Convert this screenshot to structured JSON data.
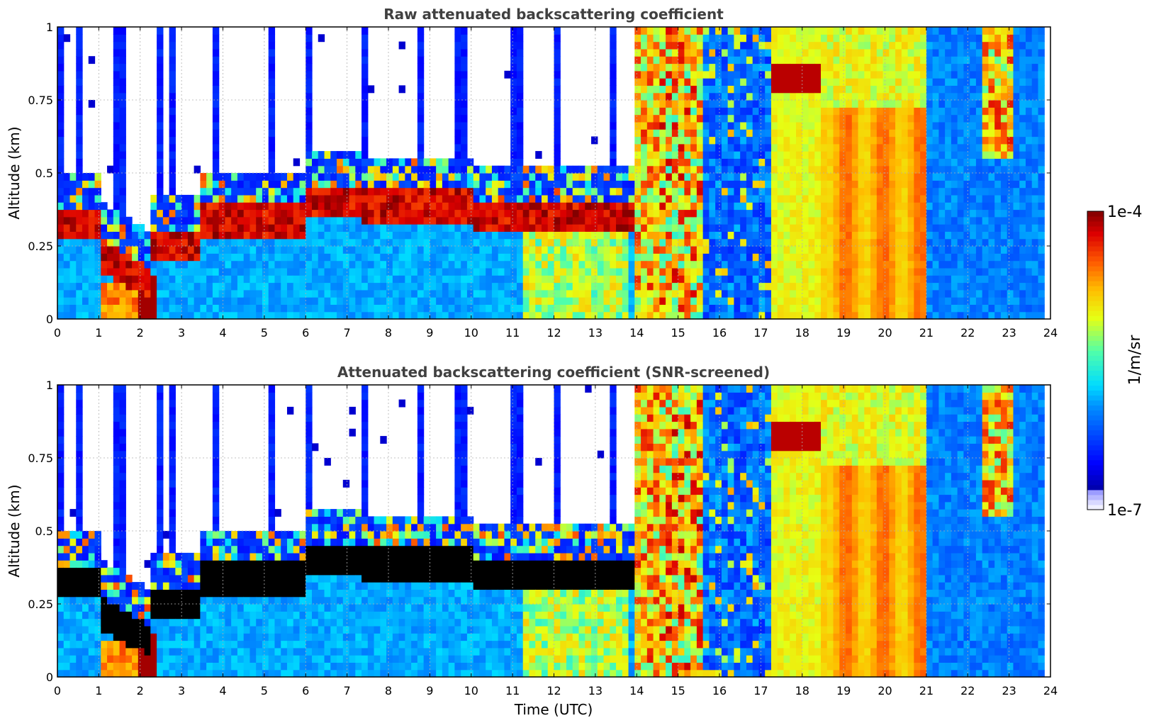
{
  "chart_data": [
    {
      "type": "heatmap",
      "title": "Raw attenuated backscattering coefficient",
      "xlabel": "",
      "ylabel": "Altitude (km)",
      "xlim": [
        0,
        24
      ],
      "ylim": [
        0,
        1
      ],
      "xticks": [
        "0",
        "1",
        "2",
        "3",
        "4",
        "5",
        "6",
        "7",
        "8",
        "9",
        "10",
        "11",
        "12",
        "13",
        "14",
        "15",
        "16",
        "17",
        "18",
        "19",
        "20",
        "21",
        "22",
        "23",
        "24"
      ],
      "yticks": [
        "0",
        "0.25",
        "0.5",
        "0.75",
        "1"
      ],
      "grid": true,
      "screened": false
    },
    {
      "type": "heatmap",
      "title": "Attenuated backscattering coefficient (SNR-screened)",
      "xlabel": "Time (UTC)",
      "ylabel": "Altitude (km)",
      "xlim": [
        0,
        24
      ],
      "ylim": [
        0,
        1
      ],
      "xticks": [
        "0",
        "1",
        "2",
        "3",
        "4",
        "5",
        "6",
        "7",
        "8",
        "9",
        "10",
        "11",
        "12",
        "13",
        "14",
        "15",
        "16",
        "17",
        "18",
        "19",
        "20",
        "21",
        "22",
        "23",
        "24"
      ],
      "yticks": [
        "0",
        "0.25",
        "0.5",
        "0.75",
        "1"
      ],
      "grid": true,
      "screened": true
    }
  ],
  "colorbar": {
    "label": "1/m/sr",
    "max_label": "1e-4",
    "min_label": "1e-7",
    "scale": "log",
    "colormap": "jet"
  }
}
